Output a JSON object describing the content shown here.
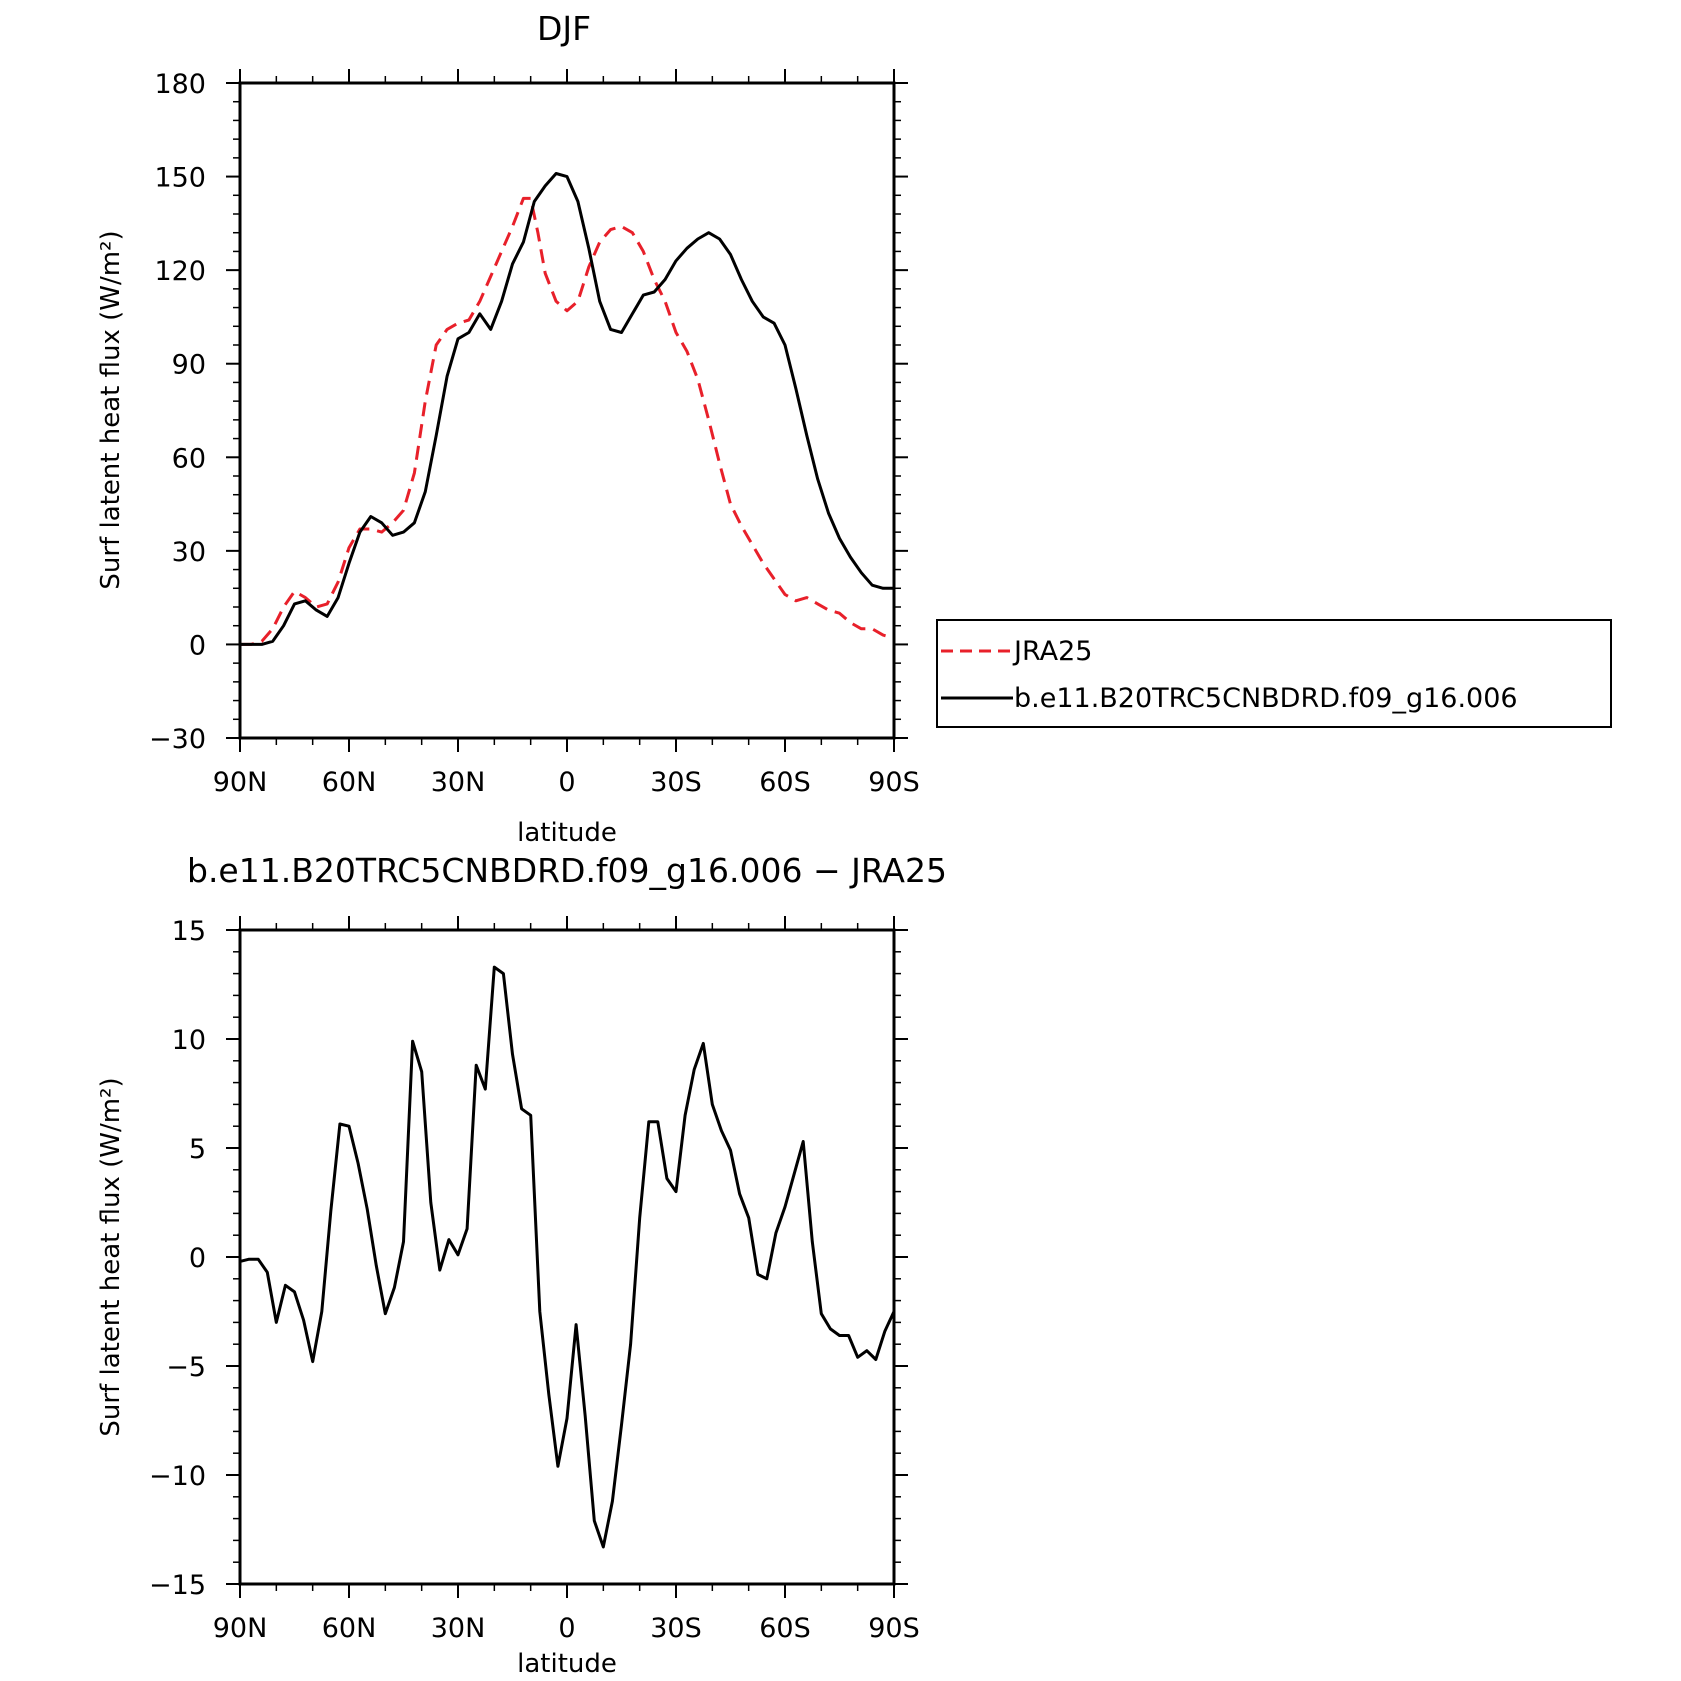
{
  "chart_data": [
    {
      "type": "line",
      "title": "DJF",
      "xlabel": "latitude",
      "ylabel": "Surf latent heat flux (W/m²)",
      "xlim": [
        90,
        -90
      ],
      "ylim": [
        -30,
        180
      ],
      "x_ticks": [
        90,
        60,
        30,
        0,
        -30,
        -60,
        -90
      ],
      "x_tick_labels": [
        "90N",
        "60N",
        "30N",
        "0",
        "30S",
        "60S",
        "90S"
      ],
      "y_ticks": [
        -30,
        0,
        30,
        60,
        90,
        120,
        150,
        180
      ],
      "y_tick_labels": [
        "−30",
        "0",
        "30",
        "60",
        "90",
        "120",
        "150",
        "180"
      ],
      "legend": {
        "placement": "right",
        "entries": [
          "JRA25",
          "b.e11.B20TRC5CNBDRD.f09_g16.006"
        ]
      },
      "series": [
        {
          "name": "JRA25",
          "color": "#e8202a",
          "style": "dashed",
          "points": [
            [
              90,
              0
            ],
            [
              87,
              0
            ],
            [
              84,
              1
            ],
            [
              81,
              5
            ],
            [
              78,
              12
            ],
            [
              75,
              17
            ],
            [
              72,
              15
            ],
            [
              69,
              12
            ],
            [
              66,
              13
            ],
            [
              63,
              20
            ],
            [
              60,
              31
            ],
            [
              57,
              37
            ],
            [
              54,
              37
            ],
            [
              51,
              36
            ],
            [
              48,
              39
            ],
            [
              45,
              43
            ],
            [
              42,
              55
            ],
            [
              39,
              78
            ],
            [
              36,
              96
            ],
            [
              33,
              101
            ],
            [
              30,
              103
            ],
            [
              27,
              104
            ],
            [
              24,
              110
            ],
            [
              21,
              118
            ],
            [
              18,
              126
            ],
            [
              15,
              134
            ],
            [
              12,
              143
            ],
            [
              10,
              143
            ],
            [
              8,
              132
            ],
            [
              6,
              119
            ],
            [
              3,
              110
            ],
            [
              0,
              107
            ],
            [
              -3,
              110
            ],
            [
              -6,
              121
            ],
            [
              -9,
              129
            ],
            [
              -12,
              133
            ],
            [
              -15,
              134
            ],
            [
              -18,
              132
            ],
            [
              -21,
              126
            ],
            [
              -24,
              117
            ],
            [
              -27,
              110
            ],
            [
              -30,
              100
            ],
            [
              -33,
              94
            ],
            [
              -36,
              85
            ],
            [
              -39,
              72
            ],
            [
              -42,
              58
            ],
            [
              -45,
              45
            ],
            [
              -48,
              38
            ],
            [
              -51,
              32
            ],
            [
              -54,
              26
            ],
            [
              -57,
              21
            ],
            [
              -60,
              16
            ],
            [
              -63,
              14
            ],
            [
              -66,
              15
            ],
            [
              -69,
              13
            ],
            [
              -72,
              11
            ],
            [
              -75,
              10
            ],
            [
              -78,
              7
            ],
            [
              -81,
              5
            ],
            [
              -84,
              5
            ],
            [
              -87,
              3
            ],
            [
              -90,
              2
            ]
          ]
        },
        {
          "name": "b.e11.B20TRC5CNBDRD.f09_g16.006",
          "color": "#000000",
          "style": "solid",
          "points": [
            [
              90,
              0
            ],
            [
              87,
              0
            ],
            [
              84,
              0
            ],
            [
              81,
              1
            ],
            [
              78,
              6
            ],
            [
              75,
              13
            ],
            [
              72,
              14
            ],
            [
              69,
              11
            ],
            [
              66,
              9
            ],
            [
              63,
              15
            ],
            [
              60,
              26
            ],
            [
              57,
              36
            ],
            [
              54,
              41
            ],
            [
              51,
              39
            ],
            [
              48,
              35
            ],
            [
              45,
              36
            ],
            [
              42,
              39
            ],
            [
              39,
              49
            ],
            [
              36,
              67
            ],
            [
              33,
              86
            ],
            [
              30,
              98
            ],
            [
              27,
              100
            ],
            [
              24,
              106
            ],
            [
              21,
              101
            ],
            [
              18,
              110
            ],
            [
              15,
              122
            ],
            [
              12,
              129
            ],
            [
              9,
              142
            ],
            [
              6,
              147
            ],
            [
              3,
              151
            ],
            [
              0,
              150
            ],
            [
              -3,
              142
            ],
            [
              -6,
              127
            ],
            [
              -9,
              110
            ],
            [
              -12,
              101
            ],
            [
              -15,
              100
            ],
            [
              -18,
              106
            ],
            [
              -21,
              112
            ],
            [
              -24,
              113
            ],
            [
              -27,
              117
            ],
            [
              -30,
              123
            ],
            [
              -33,
              127
            ],
            [
              -36,
              130
            ],
            [
              -39,
              132
            ],
            [
              -42,
              130
            ],
            [
              -45,
              125
            ],
            [
              -48,
              117
            ],
            [
              -51,
              110
            ],
            [
              -54,
              105
            ],
            [
              -57,
              103
            ],
            [
              -60,
              96
            ],
            [
              -63,
              82
            ],
            [
              -66,
              67
            ],
            [
              -69,
              53
            ],
            [
              -72,
              42
            ],
            [
              -75,
              34
            ],
            [
              -78,
              28
            ],
            [
              -81,
              23
            ],
            [
              -84,
              19
            ],
            [
              -87,
              18
            ],
            [
              -90,
              18
            ]
          ]
        }
      ]
    },
    {
      "type": "line",
      "title": "b.e11.B20TRC5CNBDRD.f09_g16.006 − JRA25",
      "xlabel": "latitude",
      "ylabel": "Surf latent heat flux (W/m²)",
      "xlim": [
        90,
        -90
      ],
      "ylim": [
        -15,
        15
      ],
      "x_ticks": [
        90,
        60,
        30,
        0,
        -30,
        -60,
        -90
      ],
      "x_tick_labels": [
        "90N",
        "60N",
        "30N",
        "0",
        "30S",
        "60S",
        "90S"
      ],
      "y_ticks": [
        -15,
        -10,
        -5,
        0,
        5,
        10,
        15
      ],
      "y_tick_labels": [
        "−15",
        "−10",
        "−5",
        "0",
        "5",
        "10",
        "15"
      ],
      "series": [
        {
          "color": "#000000",
          "style": "solid",
          "points": [
            [
              90,
              -0.2
            ],
            [
              87.5,
              -0.1
            ],
            [
              85,
              -0.1
            ],
            [
              82.5,
              -0.7
            ],
            [
              80,
              -3.0
            ],
            [
              77.5,
              -1.3
            ],
            [
              75,
              -1.6
            ],
            [
              72.5,
              -2.9
            ],
            [
              70,
              -4.8
            ],
            [
              67.5,
              -2.5
            ],
            [
              65,
              2.1
            ],
            [
              62.5,
              6.1
            ],
            [
              60,
              6.0
            ],
            [
              57.5,
              4.3
            ],
            [
              55,
              2.2
            ],
            [
              52.5,
              -0.4
            ],
            [
              50,
              -2.6
            ],
            [
              47.5,
              -1.4
            ],
            [
              45,
              0.7
            ],
            [
              42.5,
              9.9
            ],
            [
              40,
              8.5
            ],
            [
              37.5,
              2.5
            ],
            [
              35,
              -0.6
            ],
            [
              32.5,
              0.8
            ],
            [
              30,
              0.1
            ],
            [
              27.5,
              1.3
            ],
            [
              25,
              8.8
            ],
            [
              22.5,
              7.7
            ],
            [
              20,
              13.3
            ],
            [
              17.5,
              13.0
            ],
            [
              15,
              9.3
            ],
            [
              12.5,
              6.8
            ],
            [
              10,
              6.5
            ],
            [
              7.5,
              -2.5
            ],
            [
              5,
              -6.3
            ],
            [
              2.5,
              -9.6
            ],
            [
              0,
              -7.4
            ],
            [
              -2.5,
              -3.1
            ],
            [
              -5,
              -7.3
            ],
            [
              -7.5,
              -12.1
            ],
            [
              -10,
              -13.3
            ],
            [
              -12.5,
              -11.2
            ],
            [
              -15,
              -7.7
            ],
            [
              -17.5,
              -4.0
            ],
            [
              -20,
              1.8
            ],
            [
              -22.5,
              6.2
            ],
            [
              -25,
              6.2
            ],
            [
              -27.5,
              3.6
            ],
            [
              -30,
              3.0
            ],
            [
              -32.5,
              6.5
            ],
            [
              -35,
              8.6
            ],
            [
              -37.5,
              9.8
            ],
            [
              -40,
              7.0
            ],
            [
              -42.5,
              5.8
            ],
            [
              -45,
              4.9
            ],
            [
              -47.5,
              2.9
            ],
            [
              -50,
              1.8
            ],
            [
              -52.5,
              -0.8
            ],
            [
              -55,
              -1.0
            ],
            [
              -57.5,
              1.1
            ],
            [
              -60,
              2.3
            ],
            [
              -62.5,
              3.8
            ],
            [
              -65,
              5.3
            ],
            [
              -67.5,
              0.7
            ],
            [
              -70,
              -2.6
            ],
            [
              -72.5,
              -3.3
            ],
            [
              -75,
              -3.6
            ],
            [
              -77.5,
              -3.6
            ],
            [
              -80,
              -4.6
            ],
            [
              -82.5,
              -4.3
            ],
            [
              -85,
              -4.7
            ],
            [
              -87.5,
              -3.4
            ],
            [
              -90,
              -2.5
            ]
          ]
        }
      ]
    }
  ]
}
